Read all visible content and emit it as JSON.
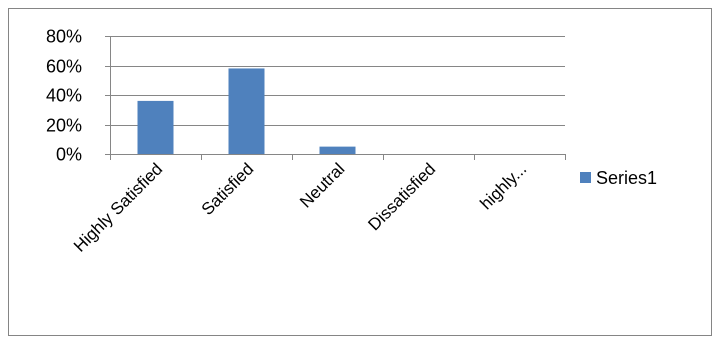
{
  "chart_data": {
    "type": "bar",
    "categories": [
      "Highly Satisfied",
      "Satisfied",
      "Neutral",
      "Dissatisfied",
      "highly..."
    ],
    "series": [
      {
        "name": "Series1",
        "values": [
          0.36,
          0.58,
          0.05,
          0.0,
          0.0
        ],
        "color": "#4f81bd"
      }
    ],
    "ylim": [
      0,
      0.8
    ],
    "yticks": [
      0,
      0.2,
      0.4,
      0.6,
      0.8
    ],
    "ytick_labels": [
      "0%",
      "20%",
      "40%",
      "60%",
      "80%"
    ],
    "title": "",
    "xlabel": "",
    "ylabel": "",
    "grid": true,
    "legend_position": "right"
  }
}
